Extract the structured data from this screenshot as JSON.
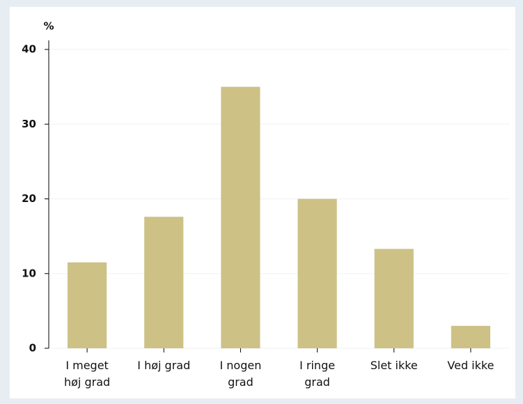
{
  "chart_data": {
    "type": "bar",
    "y_label": "%",
    "categories": [
      "I meget\nhøj grad",
      "I høj grad",
      "I nogen\ngrad",
      "I ringe\ngrad",
      "Slet ikke",
      "Ved ikke"
    ],
    "values": [
      11.5,
      17.6,
      35.0,
      20.0,
      13.3,
      3.0
    ],
    "color": "#cdc186",
    "ylim": [
      0,
      40
    ],
    "yticks": [
      0,
      10,
      20,
      30,
      40
    ],
    "grid": true
  }
}
